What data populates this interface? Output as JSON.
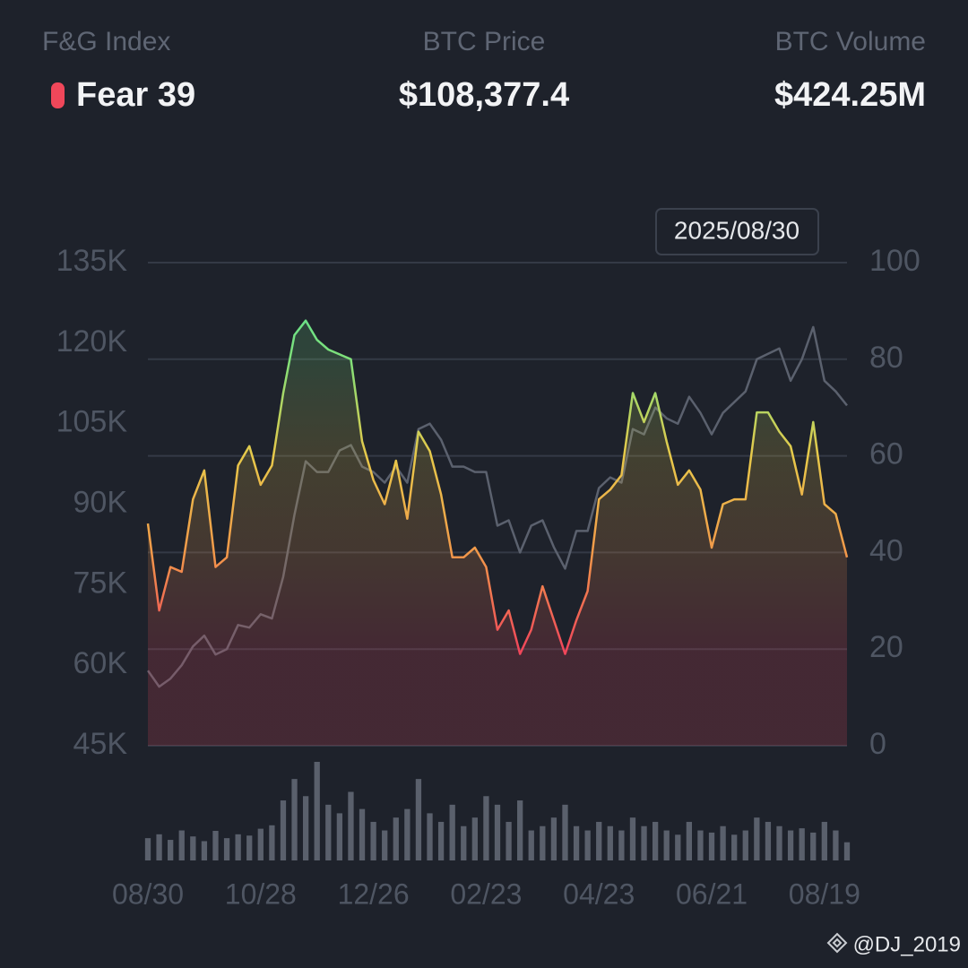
{
  "header": {
    "stats": [
      {
        "label": "F&G Index",
        "value": "Fear 39"
      },
      {
        "label": "BTC Price",
        "value": "$108,377.4"
      },
      {
        "label": "BTC Volume",
        "value": "$424.25M"
      }
    ]
  },
  "tooltip": "2025/08/30",
  "watermark": "@DJ_2019",
  "chart_data": {
    "type": "line",
    "categories": [
      "08/30",
      null,
      null,
      null,
      null,
      null,
      null,
      null,
      null,
      null,
      "10/28",
      null,
      null,
      null,
      null,
      null,
      null,
      null,
      null,
      null,
      "12/26",
      null,
      null,
      null,
      null,
      null,
      null,
      null,
      null,
      null,
      "02/23",
      null,
      null,
      null,
      null,
      null,
      null,
      null,
      null,
      null,
      "04/23",
      null,
      null,
      null,
      null,
      null,
      null,
      null,
      null,
      null,
      "06/21",
      null,
      null,
      null,
      null,
      null,
      null,
      null,
      null,
      null,
      "08/19",
      null,
      null
    ],
    "ylim": [
      45000,
      135000
    ],
    "yticks": [
      {
        "value": 45000,
        "label": "45K"
      },
      {
        "value": 60000,
        "label": "60K"
      },
      {
        "value": 75000,
        "label": "75K"
      },
      {
        "value": 90000,
        "label": "90K"
      },
      {
        "value": 105000,
        "label": "105K"
      },
      {
        "value": 120000,
        "label": "120K"
      },
      {
        "value": 135000,
        "label": "135K"
      }
    ],
    "y2lim": [
      0,
      100
    ],
    "y2ticks": [
      0,
      20,
      40,
      60,
      80,
      100
    ],
    "grid": true,
    "series": [
      {
        "color": "#5b616e",
        "values": [
          59000,
          56000,
          57500,
          60000,
          63500,
          65500,
          62000,
          63000,
          67500,
          67000,
          69500,
          68700,
          76500,
          88000,
          98000,
          96000,
          96000,
          100000,
          101000,
          97000,
          96000,
          94000,
          97000,
          94000,
          104000,
          105000,
          102000,
          97000,
          97000,
          96000,
          96000,
          86000,
          87000,
          81000,
          86000,
          87000,
          82000,
          78000,
          85000,
          85000,
          93000,
          95000,
          94000,
          104000,
          103000,
          108000,
          106000,
          105000,
          110000,
          107000,
          103000,
          107000,
          109000,
          111000,
          117000,
          118000,
          119000,
          113000,
          117000,
          123000,
          113000,
          111000,
          108377
        ]
      },
      {
        "axis": "y2",
        "colors": [
          "#f0475a",
          "#f0475a",
          "#f2994a",
          "#e8c94a",
          "#7fe07a",
          "#4ee39a"
        ],
        "values": [
          46,
          28,
          37,
          36,
          51,
          57,
          37,
          39,
          58,
          62,
          54,
          58,
          73,
          85,
          88,
          84,
          82,
          81,
          80,
          63,
          55,
          50,
          59,
          47,
          65,
          61,
          52,
          39,
          39,
          41,
          37,
          24,
          28,
          19,
          24,
          33,
          26,
          19,
          26,
          32,
          51,
          53,
          56,
          73,
          67,
          73,
          63,
          54,
          57,
          53,
          41,
          50,
          51,
          51,
          69,
          69,
          65,
          62,
          52,
          67,
          50,
          48,
          39
        ]
      },
      {
        "type": "bar",
        "color": "#5a606c",
        "values": [
          520,
          610,
          480,
          700,
          560,
          450,
          690,
          520,
          610,
          580,
          740,
          820,
          1400,
          1900,
          1500,
          2300,
          1300,
          1100,
          1600,
          1200,
          900,
          700,
          1000,
          1200,
          1900,
          1100,
          900,
          1300,
          800,
          1000,
          1500,
          1300,
          900,
          1400,
          700,
          800,
          1000,
          1300,
          800,
          700,
          900,
          800,
          700,
          1000,
          800,
          900,
          700,
          600,
          900,
          700,
          650,
          800,
          600,
          700,
          1000,
          900,
          800,
          700,
          750,
          650,
          900,
          700,
          424.25
        ]
      }
    ]
  }
}
